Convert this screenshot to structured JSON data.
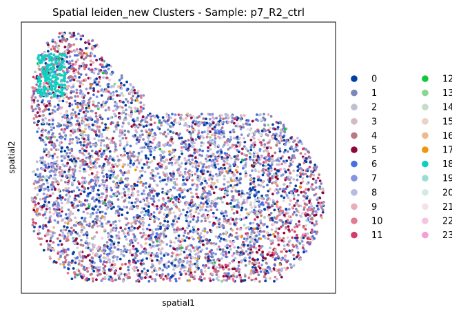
{
  "chart_data": {
    "type": "scatter",
    "title": "Spatial leiden_new Clusters - Sample: p7_R2_ctrl",
    "xlabel": "spatial1",
    "ylabel": "spatial2",
    "xticks": [],
    "yticks": [],
    "grid": false,
    "legend_placement": "right",
    "legend_columns": 2,
    "series": [
      {
        "name": "0",
        "color": "#023fa5"
      },
      {
        "name": "1",
        "color": "#7d87b9"
      },
      {
        "name": "2",
        "color": "#bec1d4"
      },
      {
        "name": "3",
        "color": "#d6bcc0"
      },
      {
        "name": "4",
        "color": "#bb7784"
      },
      {
        "name": "5",
        "color": "#8e063b"
      },
      {
        "name": "6",
        "color": "#4a6fe3"
      },
      {
        "name": "7",
        "color": "#8595e1"
      },
      {
        "name": "8",
        "color": "#b5bbe3"
      },
      {
        "name": "9",
        "color": "#e6afb9"
      },
      {
        "name": "10",
        "color": "#e07b91"
      },
      {
        "name": "11",
        "color": "#d33f6a"
      },
      {
        "name": "12",
        "color": "#11c638"
      },
      {
        "name": "13",
        "color": "#8dd593"
      },
      {
        "name": "14",
        "color": "#c6dec7"
      },
      {
        "name": "15",
        "color": "#ead3c6"
      },
      {
        "name": "16",
        "color": "#f0b98d"
      },
      {
        "name": "17",
        "color": "#ef9708"
      },
      {
        "name": "18",
        "color": "#0fcfc0"
      },
      {
        "name": "19",
        "color": "#9cded6"
      },
      {
        "name": "20",
        "color": "#d5eae7"
      },
      {
        "name": "21",
        "color": "#f3e1eb"
      },
      {
        "name": "22",
        "color": "#f6c4e1"
      },
      {
        "name": "23",
        "color": "#f79cd4"
      }
    ]
  }
}
